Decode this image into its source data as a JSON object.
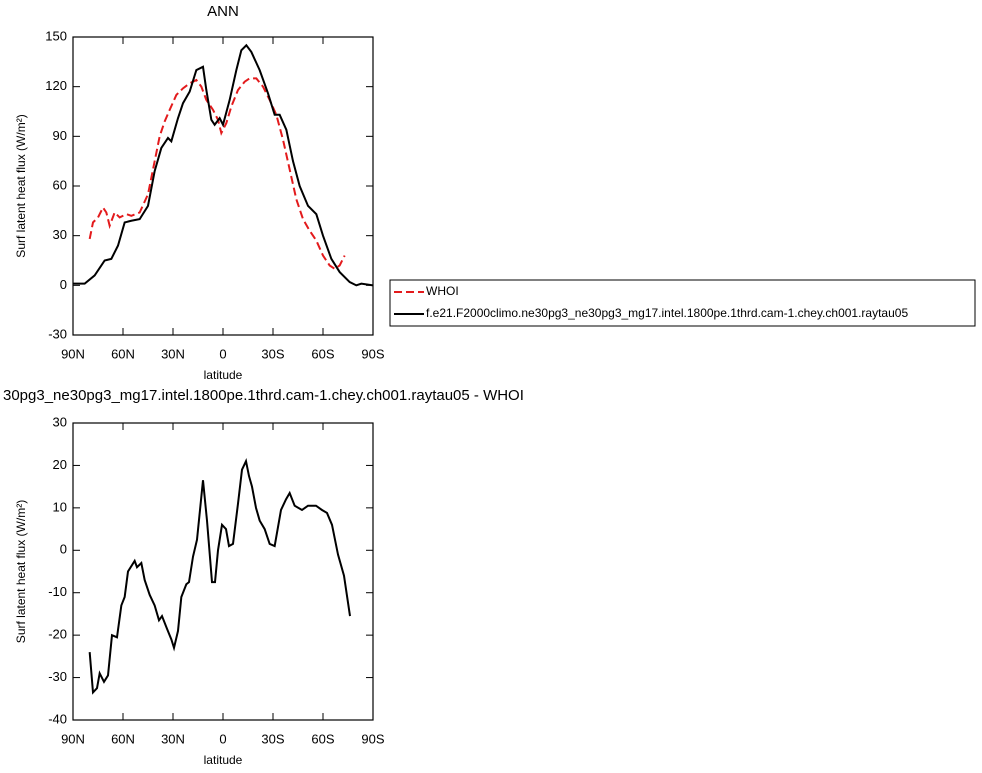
{
  "chart_data": [
    {
      "type": "line",
      "title": "ANN",
      "xlabel": "latitude",
      "ylabel": "Surf latent heat flux (W/m²)",
      "xlim": [
        90,
        -90
      ],
      "xticks": [
        {
          "value": 90,
          "label": "90N"
        },
        {
          "value": 60,
          "label": "60N"
        },
        {
          "value": 30,
          "label": "30N"
        },
        0,
        {
          "value": -30,
          "label": "30S"
        },
        {
          "value": -60,
          "label": "60S"
        },
        {
          "value": -90,
          "label": "90S"
        }
      ],
      "ylim": [
        -30,
        150
      ],
      "yticks": [
        -30,
        0,
        30,
        60,
        90,
        120,
        150
      ],
      "legend": "outside-right",
      "series": [
        {
          "name": "WHOI",
          "color": "#e31a1c",
          "style": "dashed",
          "x": [
            80,
            78,
            75,
            72,
            70,
            68,
            65,
            62,
            58,
            55,
            50,
            45,
            42,
            38,
            35,
            32,
            28,
            24,
            20,
            16,
            13,
            10,
            6,
            3,
            1,
            -2,
            -5,
            -9,
            -13,
            -16,
            -20,
            -24,
            -28,
            -32,
            -36,
            -40,
            -44,
            -48,
            -52,
            -56,
            -60,
            -64,
            -67,
            -70,
            -73
          ],
          "values": [
            28,
            38,
            41,
            47,
            44,
            36,
            44,
            41,
            43,
            42,
            44,
            55,
            70,
            90,
            99,
            106,
            115,
            119,
            122,
            124,
            120,
            112,
            106,
            100,
            92,
            98,
            108,
            118,
            123,
            125,
            125,
            120,
            112,
            103,
            88,
            70,
            52,
            40,
            33,
            27,
            18,
            12,
            10,
            12,
            18
          ]
        },
        {
          "name": "f.e21.F2000climo.ne30pg3_ne30pg3_mg17.intel.1800pe.1thrd.cam-1.chey.ch001.raytau05",
          "color": "#000000",
          "style": "solid",
          "x": [
            90,
            83,
            77,
            71,
            67,
            63,
            59,
            55,
            50,
            45,
            41,
            37,
            33,
            31,
            27,
            24,
            20,
            16,
            12,
            10,
            7,
            5,
            2,
            0,
            -4,
            -8,
            -11,
            -14,
            -17,
            -22,
            -27,
            -31,
            -34,
            -38,
            -42,
            -46,
            -51,
            -56,
            -60,
            -65,
            -70,
            -76,
            -80,
            -83,
            -90
          ],
          "values": [
            1,
            1,
            6,
            15,
            16,
            24,
            38,
            39,
            40,
            48,
            69,
            83,
            89,
            87,
            101,
            110,
            117,
            130,
            132,
            118,
            100,
            97,
            101,
            97,
            112,
            130,
            142,
            145,
            141,
            130,
            116,
            103,
            103,
            94,
            75,
            60,
            48,
            43,
            30,
            16,
            8,
            2,
            0,
            1,
            0
          ]
        }
      ]
    },
    {
      "type": "line",
      "title": "30pg3_ne30pg3_mg17.intel.1800pe.1thrd.cam-1.chey.ch001.raytau05 - WHOI",
      "xlabel": "latitude",
      "ylabel": "Surf latent heat flux (W/m²)",
      "xlim": [
        90,
        -90
      ],
      "xticks": [
        {
          "value": 90,
          "label": "90N"
        },
        {
          "value": 60,
          "label": "60N"
        },
        {
          "value": 30,
          "label": "30N"
        },
        0,
        {
          "value": -30,
          "label": "30S"
        },
        {
          "value": -60,
          "label": "60S"
        },
        {
          "value": -90,
          "label": "90S"
        }
      ],
      "ylim": [
        -40,
        30
      ],
      "yticks": [
        -40,
        -30,
        -20,
        -10,
        0,
        10,
        20,
        30
      ],
      "series": [
        {
          "color": "#000000",
          "style": "solid",
          "x": [
            80,
            78,
            75.6,
            74,
            71.4,
            69,
            66.6,
            63.6,
            61,
            59,
            57,
            53,
            51.6,
            49,
            47,
            44,
            41,
            38.4,
            36.6,
            33.6,
            31,
            29.4,
            27,
            25,
            22,
            20.4,
            18,
            15.6,
            12,
            9.6,
            6.6,
            4.8,
            3,
            0.6,
            -1.8,
            -3.6,
            -6,
            -9,
            -11.4,
            -13.8,
            -15.6,
            -17.4,
            -19.8,
            -22,
            -25,
            -28,
            -31,
            -34.8,
            -37.8,
            -40,
            -43,
            -47.4,
            -51,
            -55.8,
            -59.4,
            -62.4,
            -65.4,
            -69,
            -72.6,
            -76.2
          ],
          "values": [
            -24,
            -33.5,
            -32.5,
            -29,
            -31,
            -29.5,
            -20,
            -20.5,
            -13,
            -11,
            -5,
            -2.5,
            -4,
            -3,
            -7,
            -10.5,
            -13,
            -16.5,
            -15.5,
            -18.5,
            -21,
            -23,
            -19,
            -11,
            -8,
            -7.5,
            -1.5,
            2.5,
            16.5,
            7,
            -7.5,
            -7.5,
            0,
            6,
            5,
            1,
            1.5,
            11,
            19,
            21,
            17.5,
            15,
            10,
            7,
            5,
            1.5,
            1,
            9.5,
            12,
            13.5,
            10.5,
            9.5,
            10.5,
            10.5,
            9.5,
            8.8,
            6,
            -1,
            -6,
            -15.5
          ]
        }
      ]
    }
  ]
}
